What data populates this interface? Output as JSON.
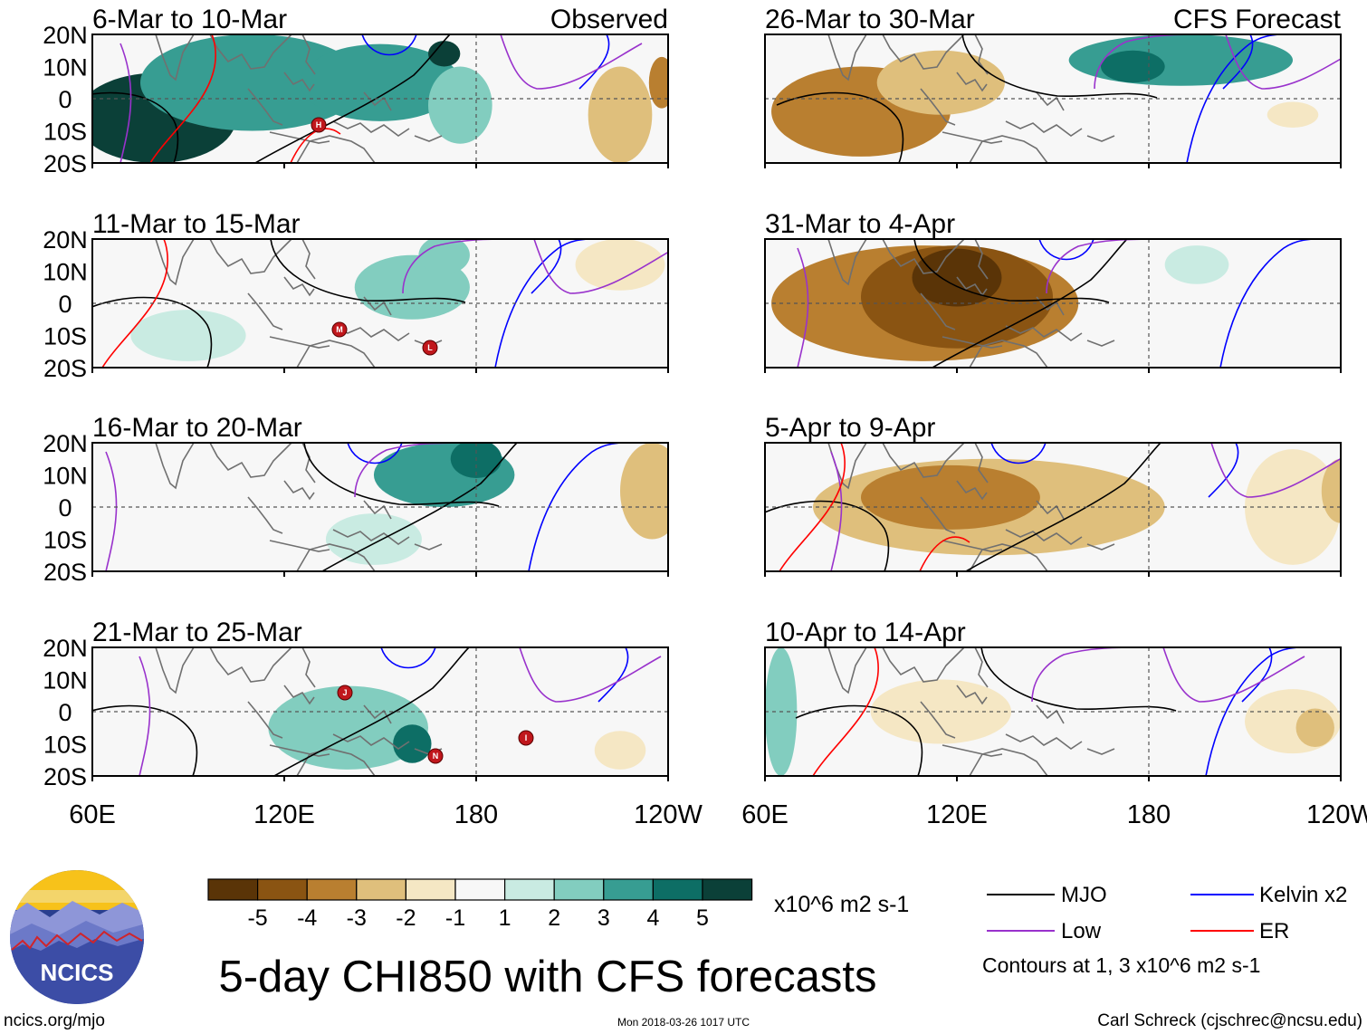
{
  "chart_data": {
    "type": "heatmap",
    "title": "5-day CHI850 with CFS forecasts",
    "units": "x10^6 m2 s-1",
    "lon_ticks": [
      "60E",
      "120E",
      "180",
      "120W"
    ],
    "lon_range_deg": [
      60,
      240
    ],
    "lat_ticks": [
      "20N",
      "10N",
      "0",
      "10S",
      "20S"
    ],
    "lat_range_deg": [
      -20,
      20
    ],
    "colorbar": {
      "labels": [
        "-5",
        "-4",
        "-3",
        "-2",
        "-1",
        "1",
        "2",
        "3",
        "4",
        "5"
      ],
      "colors": [
        "#5a3407",
        "#8a5412",
        "#b97f30",
        "#dfbf7c",
        "#f5e7c4",
        "#f7f7f7",
        "#c9ebe2",
        "#82cdbf",
        "#379d92",
        "#0d6e65",
        "#0b4038"
      ]
    },
    "legend": {
      "items": [
        {
          "label": "MJO",
          "color": "#000000"
        },
        {
          "label": "Kelvin x2",
          "color": "#0000ff"
        },
        {
          "label": "Low",
          "color": "#9932cc"
        },
        {
          "label": "ER",
          "color": "#ff0000"
        }
      ],
      "note": "Contours at 1, 3 x10^6 m2 s-1"
    },
    "panels": [
      {
        "title": "6-Mar to 10-Mar",
        "tag": "Observed",
        "column": "observed",
        "anomaly_blobs": [
          {
            "lon": 80,
            "lat": -6,
            "rlon": 25,
            "rlat": 14,
            "level": 5
          },
          {
            "lon": 110,
            "lat": 5,
            "rlon": 35,
            "rlat": 15,
            "level": 3
          },
          {
            "lon": 150,
            "lat": 5,
            "rlon": 25,
            "rlat": 12,
            "level": 3
          },
          {
            "lon": 170,
            "lat": 14,
            "rlon": 5,
            "rlat": 4,
            "level": 5
          },
          {
            "lon": 175,
            "lat": -2,
            "rlon": 10,
            "rlat": 12,
            "level": 2
          },
          {
            "lon": 225,
            "lat": -5,
            "rlon": 10,
            "rlat": 15,
            "level": -2
          },
          {
            "lon": 238,
            "lat": 5,
            "rlon": 4,
            "rlat": 8,
            "level": -3
          }
        ],
        "storms": [
          "H"
        ]
      },
      {
        "title": "11-Mar to 15-Mar",
        "tag": "",
        "column": "observed",
        "anomaly_blobs": [
          {
            "lon": 160,
            "lat": 5,
            "rlon": 18,
            "rlat": 10,
            "level": 2
          },
          {
            "lon": 90,
            "lat": -10,
            "rlon": 18,
            "rlat": 8,
            "level": 1
          },
          {
            "lon": 170,
            "lat": 15,
            "rlon": 8,
            "rlat": 6,
            "level": 2
          },
          {
            "lon": 225,
            "lat": 12,
            "rlon": 14,
            "rlat": 8,
            "level": -1
          }
        ],
        "storms": [
          "M",
          "L"
        ]
      },
      {
        "title": "16-Mar to 20-Mar",
        "tag": "",
        "column": "observed",
        "anomaly_blobs": [
          {
            "lon": 170,
            "lat": 10,
            "rlon": 22,
            "rlat": 10,
            "level": 3
          },
          {
            "lon": 180,
            "lat": 15,
            "rlon": 8,
            "rlat": 6,
            "level": 4
          },
          {
            "lon": 148,
            "lat": -10,
            "rlon": 15,
            "rlat": 8,
            "level": 1
          },
          {
            "lon": 235,
            "lat": 5,
            "rlon": 10,
            "rlat": 15,
            "level": -2
          }
        ],
        "storms": []
      },
      {
        "title": "21-Mar to 25-Mar",
        "tag": "",
        "column": "observed",
        "anomaly_blobs": [
          {
            "lon": 140,
            "lat": -5,
            "rlon": 25,
            "rlat": 13,
            "level": 2
          },
          {
            "lon": 160,
            "lat": -10,
            "rlon": 6,
            "rlat": 6,
            "level": 4
          },
          {
            "lon": 225,
            "lat": -12,
            "rlon": 8,
            "rlat": 6,
            "level": -1
          }
        ],
        "storms": [
          "J",
          "N",
          "I"
        ]
      },
      {
        "title": "26-Mar to 30-Mar",
        "tag": "CFS Forecast",
        "column": "forecast",
        "anomaly_blobs": [
          {
            "lon": 90,
            "lat": -4,
            "rlon": 28,
            "rlat": 14,
            "level": -3
          },
          {
            "lon": 115,
            "lat": 5,
            "rlon": 20,
            "rlat": 10,
            "level": -2
          },
          {
            "lon": 190,
            "lat": 12,
            "rlon": 35,
            "rlat": 8,
            "level": 3
          },
          {
            "lon": 175,
            "lat": 10,
            "rlon": 10,
            "rlat": 5,
            "level": 4
          },
          {
            "lon": 225,
            "lat": -5,
            "rlon": 8,
            "rlat": 4,
            "level": -1
          }
        ],
        "storms": []
      },
      {
        "title": "31-Mar to 4-Apr",
        "tag": "",
        "column": "forecast",
        "anomaly_blobs": [
          {
            "lon": 110,
            "lat": 0,
            "rlon": 48,
            "rlat": 18,
            "level": -3
          },
          {
            "lon": 120,
            "lat": 2,
            "rlon": 30,
            "rlat": 16,
            "level": -4
          },
          {
            "lon": 120,
            "lat": 8,
            "rlon": 14,
            "rlat": 9,
            "level": -5
          },
          {
            "lon": 195,
            "lat": 12,
            "rlon": 10,
            "rlat": 6,
            "level": 1
          }
        ],
        "storms": []
      },
      {
        "title": "5-Apr to 9-Apr",
        "tag": "",
        "column": "forecast",
        "anomaly_blobs": [
          {
            "lon": 130,
            "lat": 0,
            "rlon": 55,
            "rlat": 15,
            "level": -2
          },
          {
            "lon": 118,
            "lat": 3,
            "rlon": 28,
            "rlat": 10,
            "level": -3
          },
          {
            "lon": 225,
            "lat": 0,
            "rlon": 15,
            "rlat": 18,
            "level": -1
          },
          {
            "lon": 240,
            "lat": 5,
            "rlon": 6,
            "rlat": 10,
            "level": -2
          }
        ],
        "storms": []
      },
      {
        "title": "10-Apr to 14-Apr",
        "tag": "",
        "column": "forecast",
        "anomaly_blobs": [
          {
            "lon": 115,
            "lat": 0,
            "rlon": 22,
            "rlat": 10,
            "level": -1
          },
          {
            "lon": 225,
            "lat": -3,
            "rlon": 15,
            "rlat": 10,
            "level": -1
          },
          {
            "lon": 232,
            "lat": -5,
            "rlon": 6,
            "rlat": 6,
            "level": -2
          },
          {
            "lon": 65,
            "lat": 0,
            "rlon": 5,
            "rlat": 20,
            "level": 2
          }
        ],
        "storms": []
      }
    ]
  },
  "branding": {
    "logo_text": "NCICS",
    "site": "ncics.org/mjo",
    "timestamp": "Mon 2018-03-26 1017 UTC",
    "author": "Carl Schreck (cjschrec@ncsu.edu)"
  }
}
